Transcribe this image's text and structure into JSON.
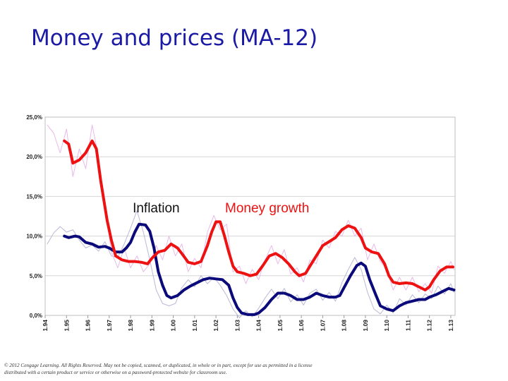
{
  "slide": {
    "title": "Money and prices (MA-12)",
    "copyright": "© 2012 Cengage Learning. All Rights Reserved. May not be copied, scanned, or duplicated, in whole or in part, except for use as permitted in a license distributed with a certain product or service or otherwise on a password-protected website for classroom use."
  },
  "colors": {
    "title": "#1a1aa6",
    "inflation": "#0a0a7a",
    "money_growth": "#ee1111",
    "grid": "#d6d6d6",
    "faint_inflation": "#b9b9d6",
    "faint_money": "#e9b9e9"
  },
  "chart_data": {
    "type": "line",
    "title": "",
    "xlabel": "",
    "ylabel": "",
    "ylim": [
      0,
      25
    ],
    "xlim": [
      1994,
      2013.2
    ],
    "y_ticks": [
      {
        "value": 0,
        "label": "0,0%"
      },
      {
        "value": 5,
        "label": "5,0%"
      },
      {
        "value": 10,
        "label": "10,0%"
      },
      {
        "value": 15,
        "label": "15,0%"
      },
      {
        "value": 20,
        "label": "20,0%"
      },
      {
        "value": 25,
        "label": "25,0%"
      }
    ],
    "x_ticks": [
      {
        "value": 1994,
        "label": "1.94"
      },
      {
        "value": 1995,
        "label": "1.95"
      },
      {
        "value": 1996,
        "label": "1.96"
      },
      {
        "value": 1997,
        "label": "1.97"
      },
      {
        "value": 1998,
        "label": "1.98"
      },
      {
        "value": 1999,
        "label": "1.99"
      },
      {
        "value": 2000,
        "label": "1.00"
      },
      {
        "value": 2001,
        "label": "1.01"
      },
      {
        "value": 2002,
        "label": "1.02"
      },
      {
        "value": 2003,
        "label": "1.03"
      },
      {
        "value": 2004,
        "label": "1.04"
      },
      {
        "value": 2005,
        "label": "1.05"
      },
      {
        "value": 2006,
        "label": "1.06"
      },
      {
        "value": 2007,
        "label": "1.07"
      },
      {
        "value": 2008,
        "label": "1.08"
      },
      {
        "value": 2009,
        "label": "1.09"
      },
      {
        "value": 2010,
        "label": "1.10"
      },
      {
        "value": 2011,
        "label": "1.11"
      },
      {
        "value": 2012,
        "label": "1.12"
      },
      {
        "value": 2013,
        "label": "1.13"
      }
    ],
    "annotations": [
      {
        "text": "Inflation",
        "x": 1999.2,
        "y": 13.0
      },
      {
        "text": "Money growth",
        "x": 2004.4,
        "y": 13.0
      }
    ],
    "series": [
      {
        "name": "Inflation",
        "role": "inflation",
        "points": [
          [
            1994.9,
            10.0
          ],
          [
            1995.1,
            9.8
          ],
          [
            1995.4,
            10.0
          ],
          [
            1995.6,
            9.9
          ],
          [
            1995.9,
            9.2
          ],
          [
            1996.2,
            9.0
          ],
          [
            1996.5,
            8.6
          ],
          [
            1996.8,
            8.7
          ],
          [
            1997.0,
            8.5
          ],
          [
            1997.3,
            8.0
          ],
          [
            1997.6,
            8.0
          ],
          [
            1997.8,
            8.5
          ],
          [
            1998.0,
            9.2
          ],
          [
            1998.2,
            10.5
          ],
          [
            1998.4,
            11.5
          ],
          [
            1998.7,
            11.4
          ],
          [
            1998.9,
            10.6
          ],
          [
            1999.1,
            8.5
          ],
          [
            1999.3,
            5.5
          ],
          [
            1999.5,
            3.8
          ],
          [
            1999.7,
            2.5
          ],
          [
            1999.9,
            2.2
          ],
          [
            2000.2,
            2.5
          ],
          [
            2000.5,
            3.2
          ],
          [
            2000.8,
            3.7
          ],
          [
            2001.1,
            4.1
          ],
          [
            2001.4,
            4.5
          ],
          [
            2001.7,
            4.7
          ],
          [
            2002.0,
            4.6
          ],
          [
            2002.3,
            4.5
          ],
          [
            2002.6,
            3.8
          ],
          [
            2002.8,
            2.2
          ],
          [
            2003.0,
            1.0
          ],
          [
            2003.2,
            0.3
          ],
          [
            2003.5,
            0.1
          ],
          [
            2003.8,
            0.1
          ],
          [
            2004.0,
            0.3
          ],
          [
            2004.3,
            1.0
          ],
          [
            2004.6,
            2.0
          ],
          [
            2004.9,
            2.8
          ],
          [
            2005.2,
            2.8
          ],
          [
            2005.5,
            2.5
          ],
          [
            2005.8,
            2.0
          ],
          [
            2006.1,
            2.0
          ],
          [
            2006.4,
            2.3
          ],
          [
            2006.7,
            2.8
          ],
          [
            2007.0,
            2.5
          ],
          [
            2007.3,
            2.3
          ],
          [
            2007.6,
            2.3
          ],
          [
            2007.8,
            2.5
          ],
          [
            2008.0,
            3.5
          ],
          [
            2008.3,
            5.0
          ],
          [
            2008.6,
            6.3
          ],
          [
            2008.8,
            6.6
          ],
          [
            2009.0,
            6.2
          ],
          [
            2009.2,
            4.5
          ],
          [
            2009.5,
            2.5
          ],
          [
            2009.7,
            1.2
          ],
          [
            2010.0,
            0.8
          ],
          [
            2010.3,
            0.6
          ],
          [
            2010.6,
            1.2
          ],
          [
            2010.9,
            1.6
          ],
          [
            2011.2,
            1.8
          ],
          [
            2011.5,
            2.0
          ],
          [
            2011.8,
            2.0
          ],
          [
            2012.0,
            2.3
          ],
          [
            2012.3,
            2.6
          ],
          [
            2012.6,
            3.0
          ],
          [
            2012.9,
            3.4
          ],
          [
            2013.15,
            3.2
          ]
        ]
      },
      {
        "name": "Money growth",
        "role": "money_growth",
        "points": [
          [
            1994.9,
            22.0
          ],
          [
            1995.1,
            21.6
          ],
          [
            1995.3,
            19.2
          ],
          [
            1995.6,
            19.6
          ],
          [
            1995.9,
            20.5
          ],
          [
            1996.1,
            21.5
          ],
          [
            1996.2,
            22.0
          ],
          [
            1996.4,
            21.0
          ],
          [
            1996.6,
            17.0
          ],
          [
            1996.9,
            12.0
          ],
          [
            1997.1,
            9.5
          ],
          [
            1997.3,
            7.5
          ],
          [
            1997.6,
            7.0
          ],
          [
            1997.9,
            6.8
          ],
          [
            1998.2,
            6.8
          ],
          [
            1998.5,
            6.7
          ],
          [
            1998.8,
            6.5
          ],
          [
            1999.0,
            7.2
          ],
          [
            1999.3,
            8.0
          ],
          [
            1999.6,
            8.2
          ],
          [
            1999.9,
            9.0
          ],
          [
            2000.2,
            8.5
          ],
          [
            2000.4,
            7.8
          ],
          [
            2000.7,
            6.7
          ],
          [
            2001.0,
            6.5
          ],
          [
            2001.3,
            6.8
          ],
          [
            2001.6,
            8.8
          ],
          [
            2001.8,
            10.5
          ],
          [
            2002.0,
            11.8
          ],
          [
            2002.2,
            11.8
          ],
          [
            2002.4,
            10.0
          ],
          [
            2002.6,
            8.0
          ],
          [
            2002.8,
            6.2
          ],
          [
            2003.0,
            5.5
          ],
          [
            2003.3,
            5.3
          ],
          [
            2003.6,
            5.0
          ],
          [
            2003.9,
            5.2
          ],
          [
            2004.2,
            6.3
          ],
          [
            2004.5,
            7.5
          ],
          [
            2004.8,
            7.8
          ],
          [
            2005.1,
            7.3
          ],
          [
            2005.4,
            6.5
          ],
          [
            2005.7,
            5.5
          ],
          [
            2005.9,
            5.0
          ],
          [
            2006.2,
            5.3
          ],
          [
            2006.4,
            6.2
          ],
          [
            2006.7,
            7.5
          ],
          [
            2007.0,
            8.8
          ],
          [
            2007.3,
            9.3
          ],
          [
            2007.6,
            9.8
          ],
          [
            2007.9,
            10.8
          ],
          [
            2008.2,
            11.3
          ],
          [
            2008.5,
            11.0
          ],
          [
            2008.8,
            9.8
          ],
          [
            2009.0,
            8.5
          ],
          [
            2009.3,
            8.0
          ],
          [
            2009.6,
            7.8
          ],
          [
            2009.9,
            6.5
          ],
          [
            2010.1,
            5.0
          ],
          [
            2010.3,
            4.2
          ],
          [
            2010.6,
            4.0
          ],
          [
            2010.9,
            4.1
          ],
          [
            2011.2,
            4.0
          ],
          [
            2011.5,
            3.6
          ],
          [
            2011.8,
            3.2
          ],
          [
            2012.0,
            3.6
          ],
          [
            2012.2,
            4.5
          ],
          [
            2012.5,
            5.6
          ],
          [
            2012.8,
            6.1
          ],
          [
            2013.1,
            6.1
          ]
        ]
      },
      {
        "name": "Inflation (faint)",
        "role": "faint_inflation",
        "points": [
          [
            1994.1,
            9.0
          ],
          [
            1994.4,
            10.4
          ],
          [
            1994.7,
            11.2
          ],
          [
            1995.0,
            10.5
          ],
          [
            1995.3,
            10.8
          ],
          [
            1995.6,
            9.5
          ],
          [
            1995.9,
            8.5
          ],
          [
            1996.2,
            8.9
          ],
          [
            1996.5,
            8.1
          ],
          [
            1996.8,
            9.3
          ],
          [
            1997.1,
            7.5
          ],
          [
            1997.4,
            7.3
          ],
          [
            1997.7,
            9.0
          ],
          [
            1998.0,
            11.0
          ],
          [
            1998.3,
            13.2
          ],
          [
            1998.6,
            10.5
          ],
          [
            1998.9,
            7.0
          ],
          [
            1999.2,
            3.2
          ],
          [
            1999.5,
            1.5
          ],
          [
            1999.8,
            1.2
          ],
          [
            2000.1,
            1.5
          ],
          [
            2000.4,
            3.5
          ],
          [
            2000.7,
            4.5
          ],
          [
            2001.0,
            3.6
          ],
          [
            2001.3,
            5.0
          ],
          [
            2001.6,
            4.0
          ],
          [
            2001.9,
            4.8
          ],
          [
            2002.2,
            3.8
          ],
          [
            2002.5,
            2.5
          ],
          [
            2002.8,
            0.8
          ],
          [
            2003.1,
            -0.3
          ],
          [
            2003.4,
            0.6
          ],
          [
            2003.7,
            -0.2
          ],
          [
            2004.0,
            0.9
          ],
          [
            2004.3,
            2.2
          ],
          [
            2004.6,
            3.3
          ],
          [
            2004.9,
            2.1
          ],
          [
            2005.2,
            3.4
          ],
          [
            2005.5,
            1.7
          ],
          [
            2005.8,
            2.6
          ],
          [
            2006.1,
            1.3
          ],
          [
            2006.4,
            2.8
          ],
          [
            2006.7,
            3.3
          ],
          [
            2007.0,
            1.9
          ],
          [
            2007.3,
            2.9
          ],
          [
            2007.6,
            1.8
          ],
          [
            2007.9,
            4.1
          ],
          [
            2008.2,
            5.8
          ],
          [
            2008.5,
            7.3
          ],
          [
            2008.8,
            5.8
          ],
          [
            2009.1,
            2.9
          ],
          [
            2009.4,
            0.8
          ],
          [
            2009.7,
            0.2
          ],
          [
            2010.0,
            1.3
          ],
          [
            2010.3,
            0.3
          ],
          [
            2010.6,
            2.1
          ],
          [
            2010.9,
            1.3
          ],
          [
            2011.2,
            2.6
          ],
          [
            2011.5,
            1.6
          ],
          [
            2011.8,
            2.7
          ],
          [
            2012.1,
            2.1
          ],
          [
            2012.4,
            3.7
          ],
          [
            2012.7,
            2.7
          ],
          [
            2013.0,
            4.0
          ],
          [
            2013.15,
            2.9
          ]
        ]
      },
      {
        "name": "Money growth (faint)",
        "role": "faint_money",
        "points": [
          [
            1994.1,
            24.0
          ],
          [
            1994.4,
            23.0
          ],
          [
            1994.7,
            20.5
          ],
          [
            1995.0,
            23.5
          ],
          [
            1995.3,
            17.5
          ],
          [
            1995.6,
            21.0
          ],
          [
            1995.9,
            18.5
          ],
          [
            1996.2,
            24.0
          ],
          [
            1996.5,
            20.0
          ],
          [
            1996.8,
            14.0
          ],
          [
            1997.1,
            8.0
          ],
          [
            1997.4,
            6.0
          ],
          [
            1997.7,
            8.5
          ],
          [
            1998.0,
            6.0
          ],
          [
            1998.3,
            7.5
          ],
          [
            1998.6,
            5.5
          ],
          [
            1998.9,
            6.5
          ],
          [
            1999.2,
            8.8
          ],
          [
            1999.5,
            7.0
          ],
          [
            1999.8,
            10.0
          ],
          [
            2000.1,
            7.5
          ],
          [
            2000.4,
            9.0
          ],
          [
            2000.7,
            5.5
          ],
          [
            2001.0,
            7.2
          ],
          [
            2001.3,
            6.0
          ],
          [
            2001.6,
            10.5
          ],
          [
            2001.9,
            12.6
          ],
          [
            2002.2,
            10.8
          ],
          [
            2002.5,
            11.5
          ],
          [
            2002.8,
            5.5
          ],
          [
            2003.1,
            6.2
          ],
          [
            2003.4,
            4.0
          ],
          [
            2003.7,
            5.8
          ],
          [
            2004.0,
            4.5
          ],
          [
            2004.3,
            7.0
          ],
          [
            2004.6,
            8.8
          ],
          [
            2004.9,
            6.5
          ],
          [
            2005.2,
            8.3
          ],
          [
            2005.5,
            5.2
          ],
          [
            2005.8,
            6.0
          ],
          [
            2006.1,
            4.2
          ],
          [
            2006.4,
            7.0
          ],
          [
            2006.7,
            6.5
          ],
          [
            2007.0,
            9.5
          ],
          [
            2007.3,
            8.5
          ],
          [
            2007.6,
            10.6
          ],
          [
            2007.9,
            10.0
          ],
          [
            2008.2,
            12.0
          ],
          [
            2008.5,
            10.0
          ],
          [
            2008.8,
            11.0
          ],
          [
            2009.1,
            7.0
          ],
          [
            2009.4,
            9.0
          ],
          [
            2009.7,
            6.8
          ],
          [
            2010.0,
            5.8
          ],
          [
            2010.3,
            3.2
          ],
          [
            2010.6,
            4.8
          ],
          [
            2010.9,
            3.2
          ],
          [
            2011.2,
            4.8
          ],
          [
            2011.5,
            3.0
          ],
          [
            2011.8,
            4.0
          ],
          [
            2012.1,
            2.8
          ],
          [
            2012.4,
            6.2
          ],
          [
            2012.7,
            5.3
          ],
          [
            2013.0,
            6.8
          ],
          [
            2013.15,
            5.8
          ]
        ]
      }
    ]
  }
}
